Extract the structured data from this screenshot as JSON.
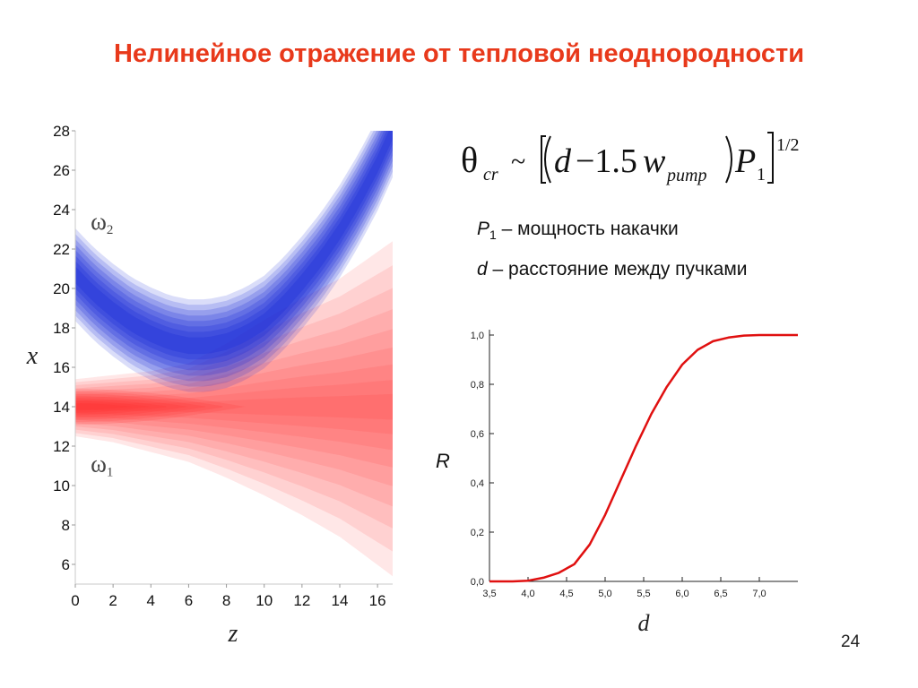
{
  "slide": {
    "title": "Нелинейное отражение от тепловой неоднородности",
    "page_number": "24"
  },
  "formula": {
    "theta": "θ",
    "theta_sub": "cr",
    "tilde": "~",
    "d": "d",
    "minus_coef": "−1.5",
    "w": "w",
    "w_sub": "pump",
    "P": "P",
    "P_sub": "1",
    "exponent": "1/2"
  },
  "definitions": [
    {
      "symbol": "P",
      "sub": "1",
      "text": " – мощность накачки"
    },
    {
      "symbol": "d",
      "sub": "",
      "text": " – расстояние между пучками"
    }
  ],
  "colors": {
    "title": "#e8391b",
    "beam_blue": "#1a2ad8",
    "beam_red": "#ff2020",
    "curve": "#e01010"
  },
  "chart_data": [
    {
      "type": "heatmap",
      "xlabel": "z",
      "ylabel": "x",
      "x_ticks": [
        "0",
        "2",
        "4",
        "6",
        "8",
        "10",
        "12",
        "14",
        "16"
      ],
      "y_ticks": [
        "6",
        "8",
        "10",
        "12",
        "14",
        "16",
        "18",
        "20",
        "22",
        "24",
        "26",
        "28"
      ],
      "xlim": [
        0,
        16.8
      ],
      "ylim": [
        5,
        28
      ],
      "annotations": [
        {
          "symbol": "ω",
          "sub": "2",
          "z": 1.0,
          "x": 23.0
        },
        {
          "symbol": "ω",
          "sub": "1",
          "z": 1.0,
          "x": 10.7
        }
      ],
      "series": [
        {
          "name": "ω2",
          "color": "#1a2ad8",
          "center_x": [
            [
              0,
              20.7
            ],
            [
              1,
              19.7
            ],
            [
              2,
              18.9
            ],
            [
              3,
              18.2
            ],
            [
              4,
              17.7
            ],
            [
              5,
              17.3
            ],
            [
              6,
              17.1
            ],
            [
              7,
              17.1
            ],
            [
              8,
              17.3
            ],
            [
              9,
              17.7
            ],
            [
              10,
              18.3
            ],
            [
              11,
              19.2
            ],
            [
              12,
              20.3
            ],
            [
              13,
              21.5
            ],
            [
              14,
              22.9
            ],
            [
              15,
              24.5
            ],
            [
              16,
              26.3
            ],
            [
              16.8,
              28.0
            ]
          ]
        },
        {
          "name": "ω1",
          "color": "#ff2020",
          "center_x": [
            [
              0,
              14.0
            ],
            [
              16.8,
              14.0
            ]
          ],
          "upper_edge_x": [
            [
              0,
              15.4
            ],
            [
              2,
              15.6
            ],
            [
              4,
              15.8
            ],
            [
              6,
              16.2
            ],
            [
              8,
              17.2
            ],
            [
              10,
              18.4
            ],
            [
              12,
              19.5
            ],
            [
              14,
              20.5
            ],
            [
              16.8,
              22.4
            ]
          ],
          "lower_edge_x": [
            [
              0,
              12.5
            ],
            [
              2,
              12.2
            ],
            [
              4,
              11.7
            ],
            [
              6,
              11.2
            ],
            [
              8,
              10.4
            ],
            [
              10,
              9.5
            ],
            [
              12,
              8.5
            ],
            [
              14,
              7.4
            ],
            [
              16.8,
              5.4
            ]
          ]
        }
      ]
    },
    {
      "type": "line",
      "xlabel": "d",
      "ylabel": "R",
      "xlim": [
        3.5,
        7.5
      ],
      "ylim": [
        0,
        1
      ],
      "x_ticks": [
        "3,5",
        "4,0",
        "4,5",
        "5,0",
        "5,5",
        "6,0",
        "6,5",
        "7,0"
      ],
      "y_ticks": [
        "0,0",
        "0,2",
        "0,4",
        "0,6",
        "0,8",
        "1,0"
      ],
      "series": [
        {
          "name": "R",
          "color": "#e01010",
          "x": [
            3.5,
            3.8,
            4.0,
            4.2,
            4.4,
            4.6,
            4.8,
            5.0,
            5.2,
            5.4,
            5.6,
            5.8,
            6.0,
            6.2,
            6.4,
            6.6,
            6.8,
            7.0,
            7.2,
            7.5
          ],
          "y": [
            0.0,
            0.0,
            0.003,
            0.015,
            0.035,
            0.07,
            0.15,
            0.27,
            0.41,
            0.55,
            0.68,
            0.79,
            0.88,
            0.94,
            0.975,
            0.99,
            0.998,
            1.0,
            1.0,
            1.0
          ]
        }
      ]
    }
  ]
}
